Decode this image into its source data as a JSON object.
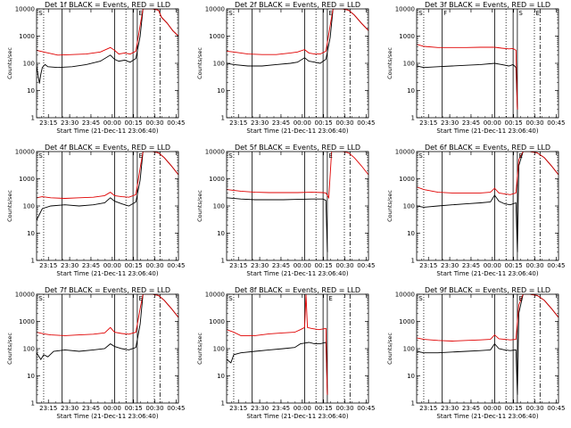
{
  "colors": {
    "events": "#000000",
    "lld": "#e00000",
    "frame": "#000000",
    "background": "#ffffff"
  },
  "legend": {
    "black_label": "BLACK = Events",
    "red_label": "RED = LLD"
  },
  "shared": {
    "ylabel": "Counts/sec",
    "xlabel": "Start Time (21-Dec-11 23:06:40)",
    "x_tick_labels": [
      "23:15",
      "23:30",
      "23:45",
      "00:00",
      "00:15",
      "00:30",
      "00:45"
    ],
    "y_tick_labels": [
      "1",
      "10",
      "100",
      "1000",
      "10000"
    ]
  },
  "chart_data": [
    {
      "type": "line",
      "title": "Det 1f BLACK = Events, RED = LLD",
      "xlabel": "Start Time (21-Dec-11 23:06:40)",
      "ylabel": "Counts/sec",
      "y_scale": "log",
      "x_range_min": [
        0,
        100
      ],
      "y_range": [
        1,
        10000
      ],
      "markers": [
        "S",
        "E"
      ],
      "solid_lines_min": [
        18,
        55,
        68,
        71
      ],
      "dotted_lines_min": [
        5,
        63,
        83
      ],
      "dashdot_lines_min": [
        87
      ],
      "series": [
        {
          "name": "Events",
          "x_min": [
            0,
            2,
            3,
            4,
            6,
            8,
            15,
            25,
            35,
            45,
            52,
            55,
            58,
            62,
            66,
            70,
            73,
            75,
            78,
            82,
            86,
            88,
            92,
            96,
            100
          ],
          "y": [
            80,
            18,
            40,
            70,
            90,
            75,
            70,
            75,
            90,
            120,
            200,
            140,
            120,
            130,
            110,
            150,
            1000,
            10000,
            10000,
            10000,
            9000,
            5000,
            3000,
            1600,
            1000
          ]
        },
        {
          "name": "LLD",
          "x_min": [
            0,
            5,
            15,
            25,
            35,
            45,
            52,
            55,
            58,
            62,
            66,
            70,
            73,
            75,
            78,
            82,
            86,
            88,
            92,
            96,
            100
          ],
          "y": [
            300,
            260,
            200,
            210,
            220,
            260,
            380,
            300,
            220,
            240,
            220,
            280,
            2500,
            10000,
            10000,
            10000,
            9000,
            5000,
            3000,
            1600,
            1000
          ]
        }
      ]
    },
    {
      "type": "line",
      "title": "Det 2f BLACK = Events, RED = LLD",
      "xlabel": "Start Time (21-Dec-11 23:06:40)",
      "ylabel": "Counts/sec",
      "y_scale": "log",
      "x_range_min": [
        0,
        100
      ],
      "y_range": [
        1,
        10000
      ],
      "markers": [
        "S",
        "E"
      ],
      "solid_lines_min": [
        18,
        55,
        68,
        71
      ],
      "dotted_lines_min": [
        5,
        63,
        83
      ],
      "dashdot_lines_min": [
        87
      ],
      "series": [
        {
          "name": "Events",
          "x_min": [
            0,
            5,
            15,
            25,
            35,
            45,
            50,
            55,
            58,
            62,
            66,
            70,
            73,
            75,
            78,
            82,
            86,
            90,
            95,
            100
          ],
          "y": [
            100,
            90,
            80,
            80,
            90,
            100,
            110,
            160,
            120,
            110,
            100,
            140,
            900,
            10000,
            10000,
            10000,
            9000,
            6000,
            3000,
            1600
          ]
        },
        {
          "name": "LLD",
          "x_min": [
            0,
            5,
            15,
            25,
            35,
            45,
            50,
            55,
            58,
            62,
            66,
            70,
            73,
            75,
            78,
            82,
            86,
            90,
            95,
            100
          ],
          "y": [
            280,
            260,
            220,
            210,
            210,
            240,
            260,
            320,
            240,
            220,
            220,
            280,
            2500,
            10000,
            10000,
            10000,
            9000,
            6000,
            3000,
            1600
          ]
        }
      ]
    },
    {
      "type": "line",
      "title": "Det 3f BLACK = Events, RED = LLD",
      "xlabel": "Start Time (21-Dec-11 23:06:40)",
      "ylabel": "Counts/sec",
      "y_scale": "log",
      "x_range_min": [
        0,
        100
      ],
      "y_range": [
        1,
        10000
      ],
      "markers": [
        "S",
        "F",
        "S",
        "E"
      ],
      "solid_lines_min": [
        18,
        55,
        68,
        71
      ],
      "dotted_lines_min": [
        5,
        63,
        83
      ],
      "dashdot_lines_min": [
        87
      ],
      "series": [
        {
          "name": "Events",
          "x_min": [
            0,
            5,
            15,
            25,
            35,
            45,
            55,
            60,
            65,
            68,
            70,
            71
          ],
          "y": [
            80,
            70,
            75,
            80,
            85,
            90,
            100,
            90,
            80,
            90,
            70,
            2
          ]
        },
        {
          "name": "LLD",
          "x_min": [
            0,
            5,
            15,
            25,
            35,
            45,
            55,
            60,
            65,
            68,
            70,
            71
          ],
          "y": [
            500,
            420,
            380,
            380,
            380,
            390,
            390,
            360,
            340,
            350,
            300,
            2
          ]
        }
      ]
    },
    {
      "type": "line",
      "title": "Det 4f BLACK = Events, RED = LLD",
      "xlabel": "Start Time (21-Dec-11 23:06:40)",
      "ylabel": "Counts/sec",
      "y_scale": "log",
      "x_range_min": [
        0,
        100
      ],
      "y_range": [
        1,
        10000
      ],
      "markers": [
        "S",
        "E"
      ],
      "solid_lines_min": [
        18,
        55,
        68,
        71
      ],
      "dotted_lines_min": [
        5,
        63,
        83
      ],
      "dashdot_lines_min": [
        87
      ],
      "series": [
        {
          "name": "Events",
          "x_min": [
            0,
            4,
            10,
            20,
            30,
            40,
            48,
            52,
            55,
            60,
            65,
            70,
            73,
            75,
            78,
            82,
            86,
            90,
            95,
            100
          ],
          "y": [
            30,
            80,
            100,
            110,
            100,
            110,
            130,
            200,
            150,
            120,
            100,
            140,
            900,
            10000,
            10000,
            10000,
            9000,
            6000,
            3000,
            1400
          ]
        },
        {
          "name": "LLD",
          "x_min": [
            0,
            4,
            10,
            20,
            30,
            40,
            48,
            52,
            55,
            60,
            65,
            70,
            73,
            75,
            78,
            82,
            86,
            90,
            95,
            100
          ],
          "y": [
            200,
            220,
            200,
            190,
            200,
            210,
            240,
            320,
            240,
            220,
            210,
            260,
            2500,
            10000,
            10000,
            10000,
            9000,
            6000,
            3000,
            1400
          ]
        }
      ]
    },
    {
      "type": "line",
      "title": "Det 5f BLACK = Events, RED = LLD",
      "xlabel": "Start Time (21-Dec-11 23:06:40)",
      "ylabel": "Counts/sec",
      "y_scale": "log",
      "x_range_min": [
        0,
        100
      ],
      "y_range": [
        1,
        10000
      ],
      "markers": [
        "S",
        "E"
      ],
      "solid_lines_min": [
        18,
        55,
        68,
        71
      ],
      "dotted_lines_min": [
        5,
        63,
        83
      ],
      "dashdot_lines_min": [
        87
      ],
      "series": [
        {
          "name": "Events",
          "x_min": [
            0,
            10,
            20,
            30,
            40,
            50,
            60,
            68,
            70,
            71
          ],
          "y": [
            200,
            180,
            170,
            170,
            170,
            175,
            180,
            180,
            160,
            2
          ]
        },
        {
          "name": "LLD",
          "x_min": [
            0,
            10,
            20,
            30,
            40,
            50,
            60,
            68,
            70,
            72,
            74,
            78,
            82,
            86,
            90,
            95,
            100
          ],
          "y": [
            400,
            350,
            320,
            310,
            310,
            310,
            320,
            310,
            300,
            200,
            10000,
            10000,
            10000,
            9000,
            6000,
            3000,
            1400
          ]
        }
      ]
    },
    {
      "type": "line",
      "title": "Det 6f BLACK = Events, RED = LLD",
      "xlabel": "Start Time (21-Dec-11 23:06:40)",
      "ylabel": "Counts/sec",
      "y_scale": "log",
      "x_range_min": [
        0,
        100
      ],
      "y_range": [
        1,
        10000
      ],
      "markers": [
        "S",
        "E"
      ],
      "solid_lines_min": [
        18,
        55,
        68,
        71
      ],
      "dotted_lines_min": [
        5,
        63,
        83
      ],
      "dashdot_lines_min": [
        87
      ],
      "series": [
        {
          "name": "Events",
          "x_min": [
            0,
            5,
            15,
            25,
            35,
            45,
            52,
            55,
            58,
            62,
            66,
            70,
            71,
            72,
            75,
            80,
            85,
            90,
            95,
            100
          ],
          "y": [
            100,
            90,
            100,
            110,
            120,
            130,
            140,
            250,
            150,
            120,
            110,
            130,
            2,
            3000,
            10000,
            10000,
            9000,
            6000,
            3000,
            1400
          ]
        },
        {
          "name": "LLD",
          "x_min": [
            0,
            5,
            15,
            25,
            35,
            45,
            52,
            55,
            58,
            62,
            66,
            70,
            72,
            75,
            80,
            85,
            90,
            95,
            100
          ],
          "y": [
            500,
            400,
            320,
            300,
            300,
            300,
            320,
            450,
            300,
            280,
            260,
            300,
            5000,
            10000,
            10000,
            9000,
            6000,
            3000,
            1400
          ]
        }
      ]
    },
    {
      "type": "line",
      "title": "Det 7f BLACK = Events, RED = LLD",
      "xlabel": "Start Time (21-Dec-11 23:06:40)",
      "ylabel": "Counts/sec",
      "y_scale": "log",
      "x_range_min": [
        0,
        100
      ],
      "y_range": [
        1,
        10000
      ],
      "markers": [
        "S",
        "E"
      ],
      "solid_lines_min": [
        18,
        55,
        68,
        71
      ],
      "dotted_lines_min": [
        5,
        63,
        83
      ],
      "dashdot_lines_min": [
        87
      ],
      "series": [
        {
          "name": "Events",
          "x_min": [
            0,
            3,
            5,
            8,
            12,
            20,
            30,
            40,
            48,
            52,
            55,
            60,
            65,
            70,
            73,
            75,
            78,
            82,
            86,
            90,
            95,
            100
          ],
          "y": [
            70,
            40,
            60,
            50,
            80,
            90,
            80,
            90,
            100,
            150,
            120,
            100,
            90,
            110,
            800,
            10000,
            10000,
            10000,
            9000,
            6000,
            3000,
            1400
          ]
        },
        {
          "name": "LLD",
          "x_min": [
            0,
            5,
            10,
            20,
            30,
            40,
            48,
            52,
            55,
            60,
            65,
            70,
            73,
            75,
            78,
            82,
            86,
            90,
            95,
            100
          ],
          "y": [
            400,
            350,
            320,
            300,
            320,
            340,
            380,
            600,
            400,
            360,
            340,
            400,
            3000,
            10000,
            10000,
            10000,
            9000,
            6000,
            3000,
            1400
          ]
        }
      ]
    },
    {
      "type": "line",
      "title": "Det 8f BLACK = Events, RED = LLD",
      "xlabel": "Start Time (21-Dec-11 23:06:40)",
      "ylabel": "Counts/sec",
      "y_scale": "log",
      "x_range_min": [
        0,
        100
      ],
      "y_range": [
        1,
        10000
      ],
      "markers": [
        "S",
        "E"
      ],
      "solid_lines_min": [
        18,
        55,
        68,
        71
      ],
      "dotted_lines_min": [
        5,
        63,
        83
      ],
      "dashdot_lines_min": [
        87
      ],
      "series": [
        {
          "name": "Events",
          "x_min": [
            0,
            3,
            5,
            10,
            20,
            30,
            40,
            48,
            52,
            55,
            58,
            62,
            66,
            70,
            71
          ],
          "y": [
            40,
            30,
            60,
            70,
            80,
            90,
            100,
            110,
            150,
            160,
            170,
            150,
            150,
            170,
            2
          ]
        },
        {
          "name": "LLD",
          "x_min": [
            0,
            5,
            10,
            20,
            30,
            40,
            48,
            52,
            55,
            56,
            57,
            60,
            65,
            70,
            71
          ],
          "y": [
            500,
            400,
            300,
            300,
            350,
            380,
            400,
            500,
            600,
            10000,
            600,
            550,
            500,
            550,
            2
          ]
        }
      ]
    },
    {
      "type": "line",
      "title": "Det 9f BLACK = Events, RED = LLD",
      "xlabel": "Start Time (21-Dec-11 23:06:40)",
      "ylabel": "Counts/sec",
      "y_scale": "log",
      "x_range_min": [
        0,
        100
      ],
      "y_range": [
        1,
        10000
      ],
      "markers": [
        "S",
        "E"
      ],
      "solid_lines_min": [
        18,
        55,
        68,
        71
      ],
      "dotted_lines_min": [
        5,
        63,
        83
      ],
      "dashdot_lines_min": [
        87
      ],
      "series": [
        {
          "name": "Events",
          "x_min": [
            0,
            5,
            15,
            25,
            35,
            45,
            52,
            55,
            58,
            62,
            66,
            70,
            71,
            72,
            75,
            80,
            85,
            90,
            95,
            100
          ],
          "y": [
            80,
            70,
            70,
            75,
            80,
            85,
            90,
            150,
            100,
            90,
            85,
            90,
            2,
            2000,
            10000,
            10000,
            9000,
            6000,
            3000,
            1400
          ]
        },
        {
          "name": "LLD",
          "x_min": [
            0,
            5,
            15,
            25,
            35,
            45,
            52,
            55,
            58,
            62,
            66,
            70,
            72,
            75,
            80,
            85,
            90,
            95,
            100
          ],
          "y": [
            250,
            220,
            200,
            190,
            200,
            210,
            220,
            320,
            230,
            220,
            210,
            220,
            4000,
            10000,
            10000,
            9000,
            6000,
            3000,
            1400
          ]
        }
      ]
    }
  ]
}
